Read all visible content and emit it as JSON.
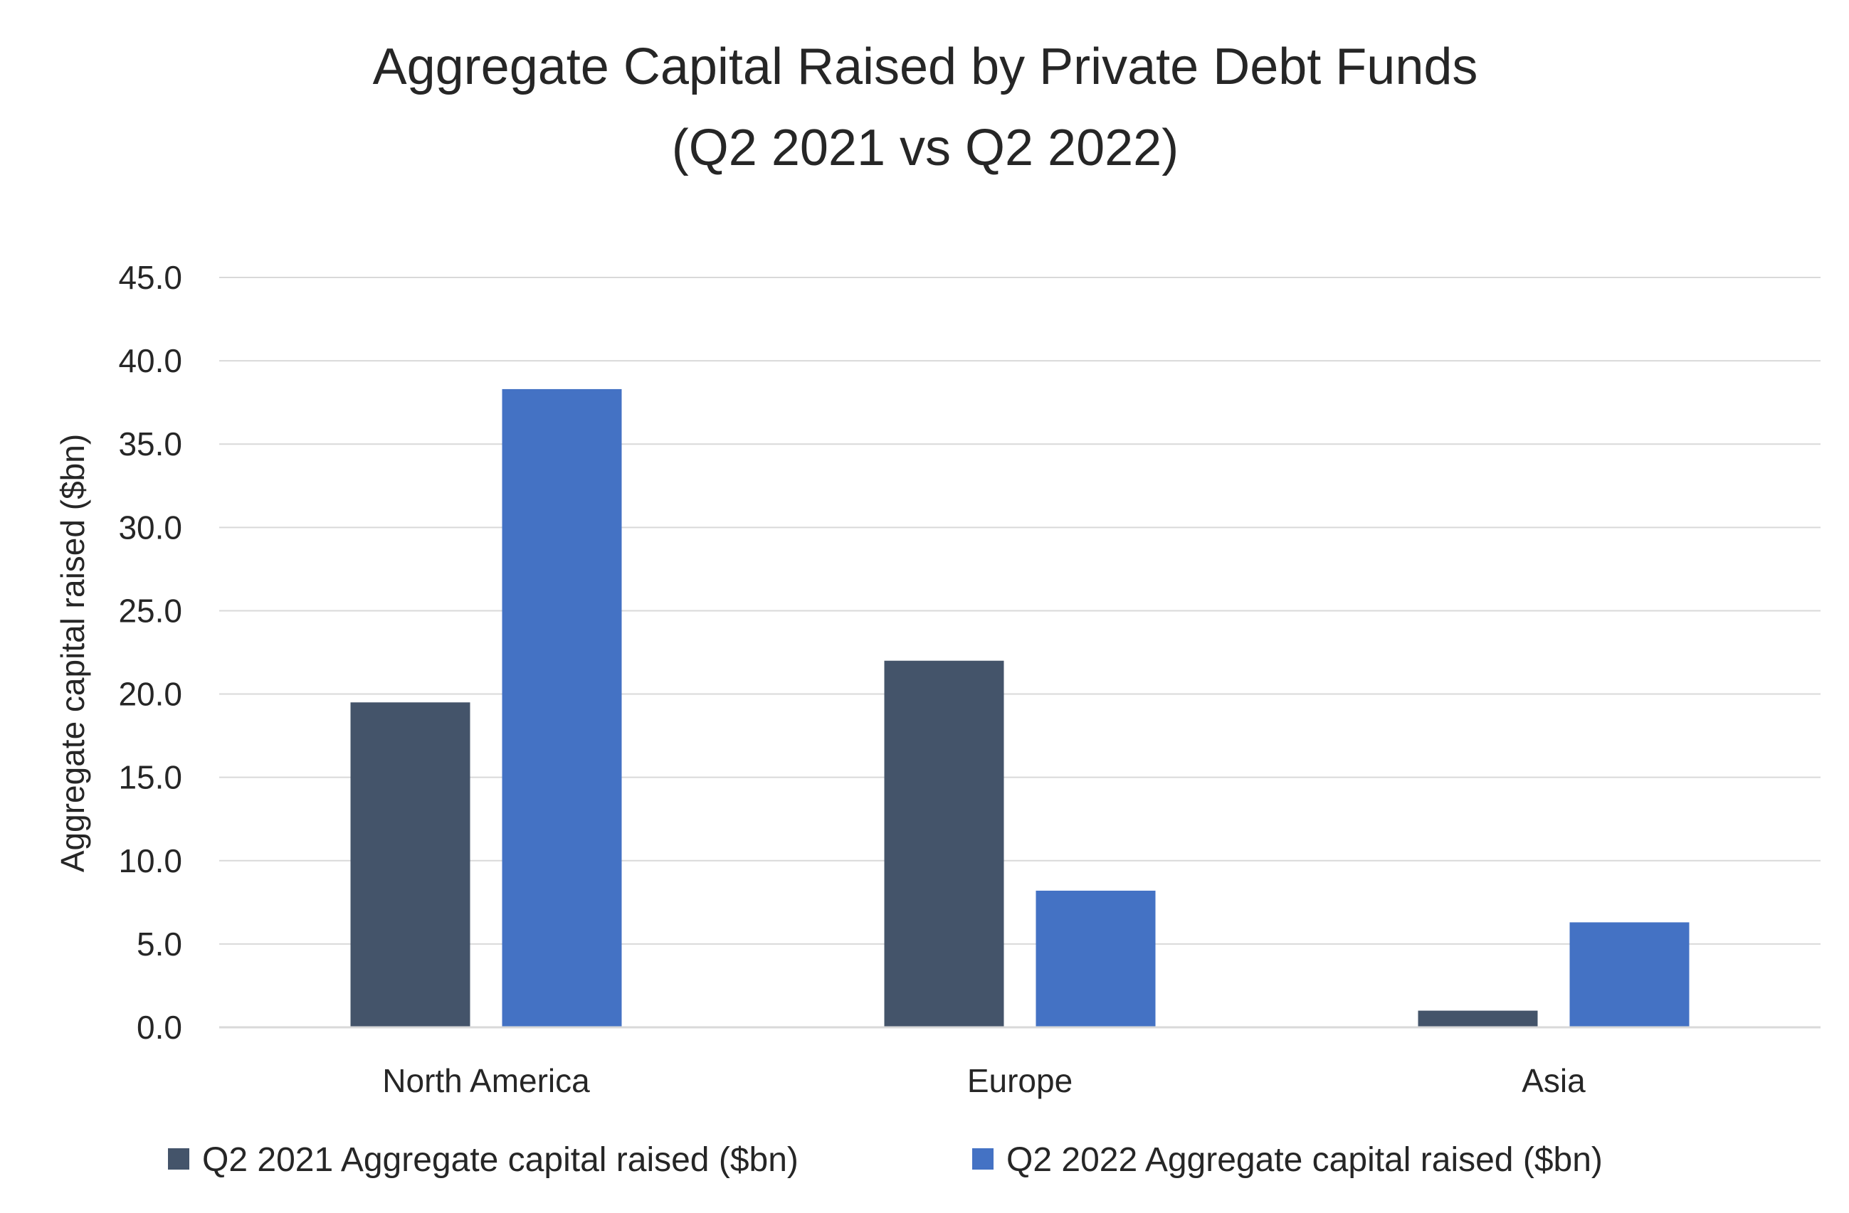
{
  "chart_data": {
    "type": "bar",
    "title": "Aggregate Capital Raised by Private Debt Funds",
    "subtitle": "(Q2 2021 vs Q2 2022)",
    "xlabel": "",
    "ylabel": "Aggregate capital raised ($bn)",
    "categories": [
      "North America",
      "Europe",
      "Asia"
    ],
    "series": [
      {
        "name": "Q2 2021 Aggregate capital raised ($bn)",
        "color": "#44546a",
        "values": [
          19.5,
          22.0,
          1.0
        ]
      },
      {
        "name": "Q2 2022 Aggregate capital raised ($bn)",
        "color": "#4472c4",
        "values": [
          38.3,
          8.2,
          6.3
        ]
      }
    ],
    "ylim": [
      0,
      45
    ],
    "yticks": [
      "0.0",
      "5.0",
      "10.0",
      "15.0",
      "20.0",
      "25.0",
      "30.0",
      "35.0",
      "40.0",
      "45.0"
    ],
    "grid": true,
    "gridline_color": "#d9d9d9",
    "legend_position": "bottom"
  }
}
